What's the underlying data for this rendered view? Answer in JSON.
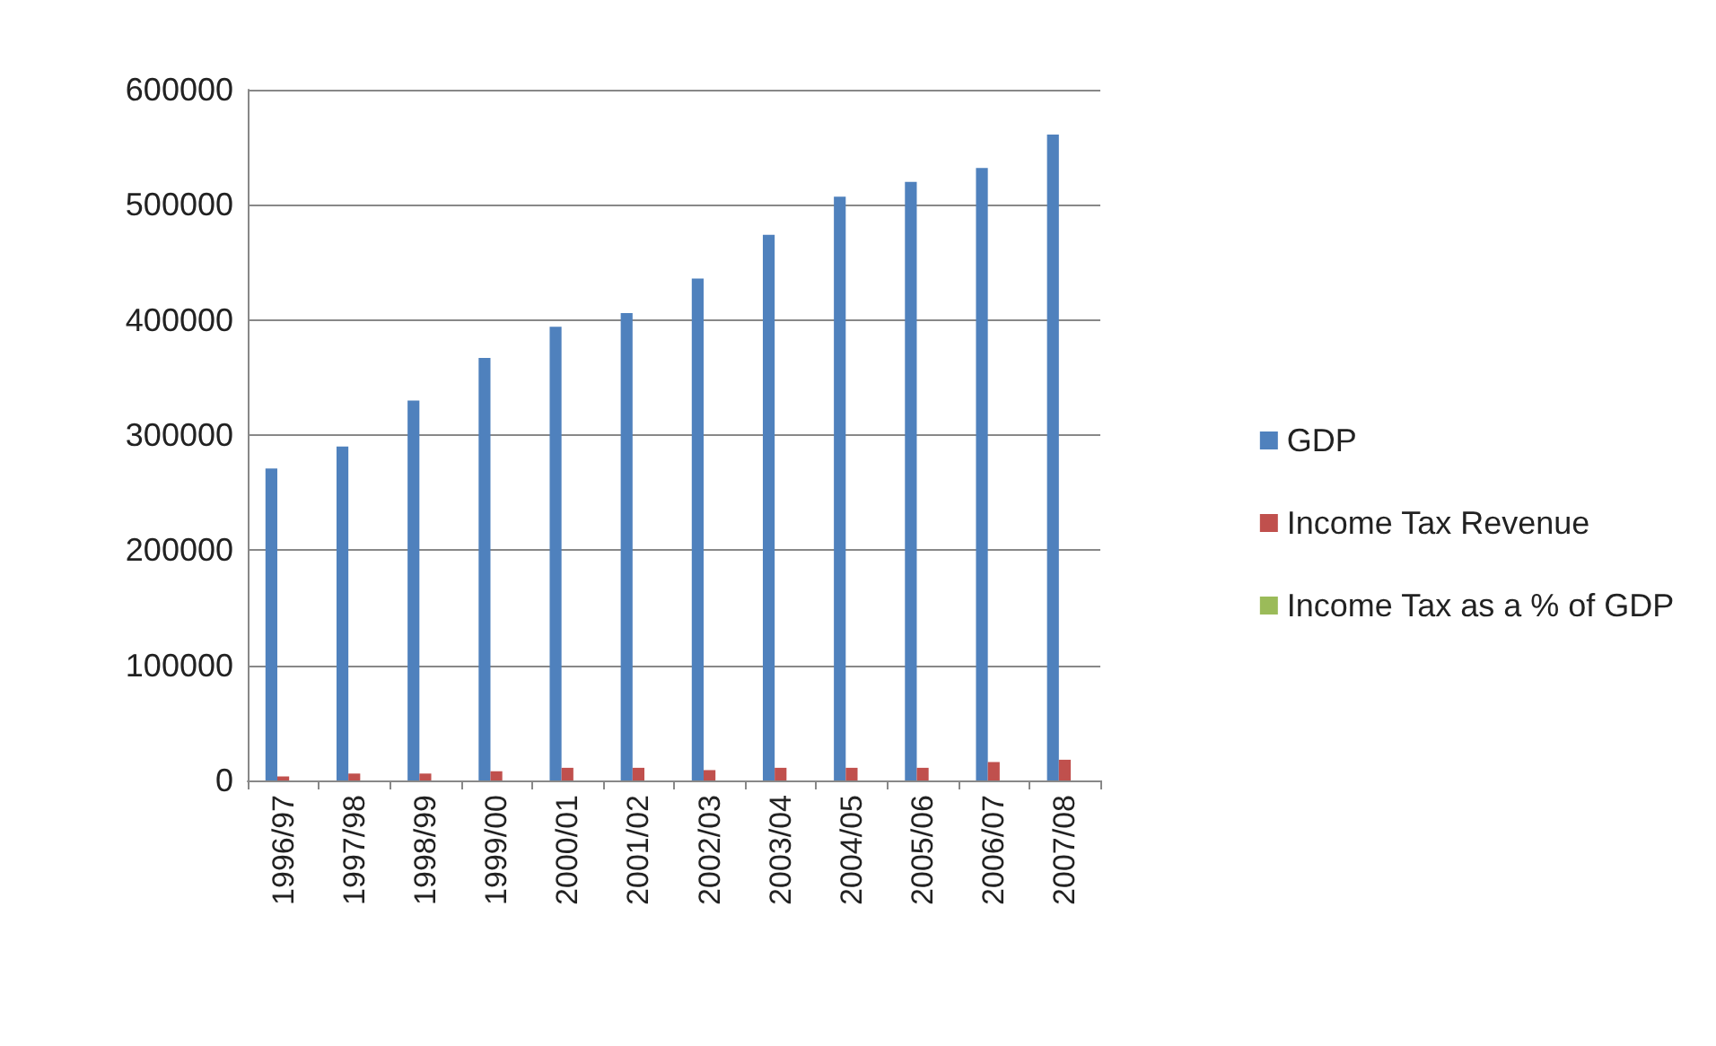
{
  "chart_data": {
    "type": "bar",
    "categories": [
      "1996/97",
      "1997/98",
      "1998/99",
      "1999/00",
      "2000/01",
      "2001/02",
      "2002/03",
      "2003/04",
      "2004/05",
      "2005/06",
      "2006/07",
      "2007/08"
    ],
    "series": [
      {
        "name": "GDP",
        "color": "#4f81bd",
        "values": [
          271000,
          290000,
          330000,
          367000,
          394000,
          406000,
          436000,
          474000,
          507000,
          520000,
          532000,
          561000
        ]
      },
      {
        "name": "Income Tax Revenue",
        "color": "#c0504d",
        "values": [
          3500,
          6000,
          6000,
          8000,
          11000,
          11000,
          9000,
          11000,
          11000,
          11000,
          16000,
          18000
        ]
      },
      {
        "name": "Income Tax as a % of GDP",
        "color": "#9bbb59",
        "values": [
          1.3,
          2.1,
          1.8,
          2.2,
          2.8,
          2.7,
          2.1,
          2.3,
          2.2,
          2.1,
          3,
          3.2
        ]
      }
    ],
    "ylim": [
      0,
      600000
    ],
    "yticks": [
      0,
      100000,
      200000,
      300000,
      400000,
      500000,
      600000
    ],
    "grid": "y",
    "legend": "right"
  }
}
